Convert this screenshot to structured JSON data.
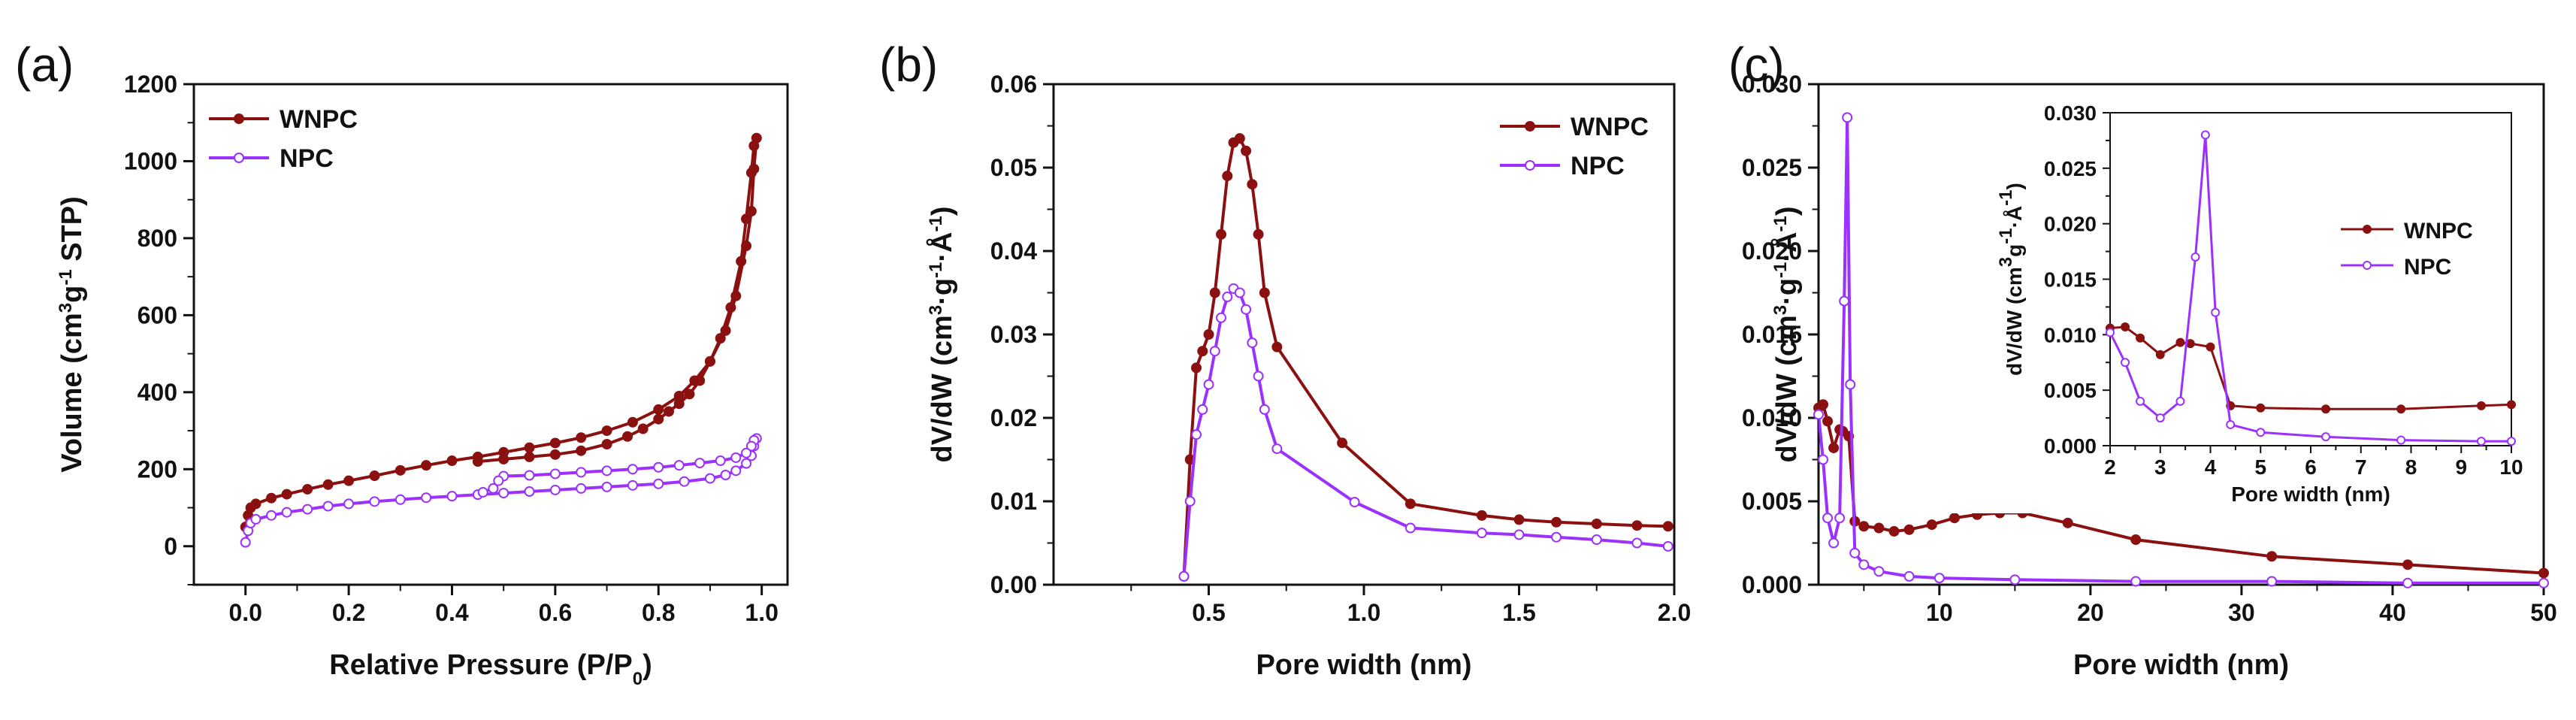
{
  "colors": {
    "wnpc": "#8B1010",
    "npc": "#9B30FF",
    "axis": "#111111"
  },
  "chart_data": [
    {
      "type": "line",
      "panel": "(a)",
      "xlabel": "Relative Pressure (P/P",
      "xlabel_sub": "0",
      "xlabel_tail": ")",
      "ylabel_parts": [
        "Volume (cm",
        "3",
        "g",
        "-1",
        " STP)"
      ],
      "xlim": [
        -0.1,
        1.05
      ],
      "ylim": [
        -100,
        1200
      ],
      "xticks": [
        0.0,
        0.2,
        0.4,
        0.6,
        0.8,
        1.0
      ],
      "xtick_labels": [
        "0.0",
        "0.2",
        "0.4",
        "0.6",
        "0.8",
        "1.0"
      ],
      "yticks": [
        0,
        200,
        400,
        600,
        800,
        1000,
        1200
      ],
      "ytick_labels": [
        "0",
        "200",
        "400",
        "600",
        "800",
        "1000",
        "1200"
      ],
      "legend": "top-left",
      "series": [
        {
          "name": "WNPC",
          "color_key": "wnpc",
          "marker": "filled",
          "x": [
            0.0,
            0.005,
            0.01,
            0.02,
            0.05,
            0.08,
            0.12,
            0.16,
            0.2,
            0.25,
            0.3,
            0.35,
            0.4,
            0.45,
            0.5,
            0.55,
            0.6,
            0.65,
            0.7,
            0.75,
            0.8,
            0.84,
            0.87,
            0.9,
            0.93,
            0.95,
            0.97,
            0.98,
            0.985,
            0.99,
            0.985,
            0.98,
            0.97,
            0.96,
            0.94,
            0.92,
            0.9,
            0.88,
            0.86,
            0.84,
            0.82,
            0.8,
            0.77,
            0.74,
            0.7,
            0.65,
            0.6,
            0.55,
            0.5,
            0.45
          ],
          "y": [
            50,
            80,
            100,
            110,
            125,
            135,
            148,
            160,
            170,
            183,
            197,
            210,
            222,
            232,
            244,
            256,
            268,
            282,
            300,
            322,
            355,
            390,
            430,
            480,
            560,
            650,
            780,
            870,
            980,
            1060,
            1040,
            970,
            850,
            740,
            620,
            540,
            480,
            430,
            395,
            370,
            350,
            330,
            305,
            285,
            265,
            248,
            238,
            232,
            226,
            220
          ]
        },
        {
          "name": "NPC",
          "color_key": "npc",
          "marker": "open",
          "x": [
            0.0,
            0.005,
            0.01,
            0.02,
            0.05,
            0.08,
            0.12,
            0.16,
            0.2,
            0.25,
            0.3,
            0.35,
            0.4,
            0.45,
            0.5,
            0.55,
            0.6,
            0.65,
            0.7,
            0.75,
            0.8,
            0.85,
            0.9,
            0.93,
            0.95,
            0.97,
            0.98,
            0.985,
            0.99,
            0.985,
            0.98,
            0.97,
            0.95,
            0.92,
            0.88,
            0.84,
            0.8,
            0.75,
            0.7,
            0.65,
            0.6,
            0.55,
            0.5,
            0.49,
            0.48,
            0.46
          ],
          "y": [
            10,
            40,
            60,
            70,
            80,
            88,
            96,
            104,
            110,
            116,
            121,
            126,
            130,
            134,
            138,
            142,
            146,
            150,
            154,
            158,
            162,
            168,
            176,
            185,
            196,
            215,
            235,
            260,
            280,
            275,
            260,
            242,
            230,
            222,
            216,
            210,
            205,
            200,
            196,
            192,
            188,
            184,
            182,
            170,
            150,
            140
          ]
        }
      ]
    },
    {
      "type": "line",
      "panel": "(b)",
      "xlabel": "Pore width (nm)",
      "ylabel_parts": [
        "dV/dW (cm",
        "3",
        "·g",
        "-1",
        "·Å",
        "-1",
        ")"
      ],
      "xlim": [
        0.0,
        2.0
      ],
      "ylim": [
        0.0,
        0.06
      ],
      "xticks": [
        0.5,
        1.0,
        1.5,
        2.0
      ],
      "xtick_labels": [
        "0.5",
        "1.0",
        "1.5",
        "2.0"
      ],
      "yticks": [
        0.0,
        0.01,
        0.02,
        0.03,
        0.04,
        0.05,
        0.06
      ],
      "ytick_labels": [
        "0.00",
        "0.01",
        "0.02",
        "0.03",
        "0.04",
        "0.05",
        "0.06"
      ],
      "legend": "top-right",
      "series": [
        {
          "name": "WNPC",
          "color_key": "wnpc",
          "marker": "filled",
          "x": [
            0.42,
            0.44,
            0.46,
            0.48,
            0.5,
            0.52,
            0.54,
            0.56,
            0.58,
            0.6,
            0.62,
            0.64,
            0.66,
            0.68,
            0.72,
            0.93,
            1.15,
            1.38,
            1.5,
            1.62,
            1.75,
            1.88,
            1.98
          ],
          "y": [
            0.001,
            0.015,
            0.026,
            0.028,
            0.03,
            0.035,
            0.042,
            0.049,
            0.053,
            0.0535,
            0.052,
            0.048,
            0.042,
            0.035,
            0.0285,
            0.017,
            0.0097,
            0.0083,
            0.0078,
            0.0075,
            0.0073,
            0.0071,
            0.007
          ]
        },
        {
          "name": "NPC",
          "color_key": "npc",
          "marker": "open",
          "x": [
            0.42,
            0.44,
            0.46,
            0.48,
            0.5,
            0.52,
            0.54,
            0.56,
            0.58,
            0.6,
            0.62,
            0.64,
            0.66,
            0.68,
            0.72,
            0.97,
            1.15,
            1.38,
            1.5,
            1.62,
            1.75,
            1.88,
            1.98
          ],
          "y": [
            0.001,
            0.01,
            0.018,
            0.021,
            0.024,
            0.028,
            0.032,
            0.0345,
            0.0355,
            0.035,
            0.033,
            0.029,
            0.025,
            0.021,
            0.0163,
            0.0099,
            0.0068,
            0.0062,
            0.006,
            0.0057,
            0.0054,
            0.005,
            0.0046
          ]
        }
      ]
    },
    {
      "type": "line",
      "panel": "(c)",
      "xlabel": "Pore width (nm)",
      "ylabel_parts": [
        "dV/dW (cm",
        "3",
        "·g",
        "-1",
        "·Å",
        "-1",
        ")"
      ],
      "xlim": [
        2,
        50
      ],
      "ylim": [
        0.0,
        0.03
      ],
      "xticks": [
        10,
        20,
        30,
        40,
        50
      ],
      "xtick_labels": [
        "10",
        "20",
        "30",
        "40",
        "50"
      ],
      "yticks": [
        0.0,
        0.005,
        0.01,
        0.015,
        0.02,
        0.025,
        0.03
      ],
      "ytick_labels": [
        "0.000",
        "0.005",
        "0.010",
        "0.015",
        "0.020",
        "0.025",
        "0.030"
      ],
      "series": [
        {
          "name": "WNPC",
          "color_key": "wnpc",
          "marker": "filled",
          "x": [
            2.0,
            2.3,
            2.6,
            3.0,
            3.4,
            3.6,
            4.0,
            4.4,
            5.0,
            6.0,
            7.0,
            8.0,
            9.5,
            11.0,
            12.5,
            14.0,
            15.5,
            18.5,
            23.0,
            32.0,
            41.0,
            50.0
          ],
          "y": [
            0.0106,
            0.0108,
            0.0098,
            0.0082,
            0.0093,
            0.0092,
            0.0089,
            0.0038,
            0.0035,
            0.0034,
            0.0032,
            0.0033,
            0.0036,
            0.004,
            0.0042,
            0.0043,
            0.0043,
            0.0037,
            0.0027,
            0.0017,
            0.0012,
            0.0007
          ]
        },
        {
          "name": "NPC",
          "color_key": "npc",
          "marker": "open",
          "x": [
            2.0,
            2.3,
            2.6,
            3.0,
            3.4,
            3.7,
            3.9,
            4.1,
            4.4,
            5.0,
            6.0,
            8.0,
            10.0,
            15.0,
            23.0,
            32.0,
            41.0,
            50.0
          ],
          "y": [
            0.0102,
            0.0075,
            0.004,
            0.0025,
            0.004,
            0.017,
            0.028,
            0.012,
            0.0019,
            0.0012,
            0.0008,
            0.0005,
            0.0004,
            0.0003,
            0.0002,
            0.0002,
            0.0001,
            0.0001
          ]
        }
      ],
      "inset": {
        "type": "line",
        "xlabel": "Pore width (nm)",
        "ylabel_parts": [
          "dV/dW (cm",
          "3",
          "g",
          "-1",
          "·Å",
          "-1",
          ")"
        ],
        "xlim": [
          2,
          10
        ],
        "ylim": [
          0.0,
          0.03
        ],
        "xticks": [
          2,
          3,
          4,
          5,
          6,
          7,
          8,
          9,
          10
        ],
        "xtick_labels": [
          "2",
          "3",
          "4",
          "5",
          "6",
          "7",
          "8",
          "9",
          "10"
        ],
        "yticks": [
          0.0,
          0.005,
          0.01,
          0.015,
          0.02,
          0.025,
          0.03
        ],
        "ytick_labels": [
          "0.000",
          "0.005",
          "0.010",
          "0.015",
          "0.020",
          "0.025",
          "0.030"
        ],
        "legend": "middle-right",
        "series": [
          {
            "name": "WNPC",
            "color_key": "wnpc",
            "marker": "filled",
            "x": [
              2.0,
              2.3,
              2.6,
              3.0,
              3.4,
              3.6,
              4.0,
              4.4,
              5.0,
              6.3,
              7.8,
              9.4,
              10.0
            ],
            "y": [
              0.0106,
              0.0107,
              0.0097,
              0.0082,
              0.0093,
              0.0092,
              0.0089,
              0.0036,
              0.0034,
              0.0033,
              0.0033,
              0.0036,
              0.0037
            ]
          },
          {
            "name": "NPC",
            "color_key": "npc",
            "marker": "open",
            "x": [
              2.0,
              2.3,
              2.6,
              3.0,
              3.4,
              3.7,
              3.9,
              4.1,
              4.4,
              5.0,
              6.3,
              7.8,
              9.4,
              10.0
            ],
            "y": [
              0.0102,
              0.0075,
              0.004,
              0.0025,
              0.004,
              0.017,
              0.028,
              0.012,
              0.0019,
              0.0012,
              0.0008,
              0.0005,
              0.0004,
              0.0004
            ]
          }
        ]
      }
    }
  ]
}
